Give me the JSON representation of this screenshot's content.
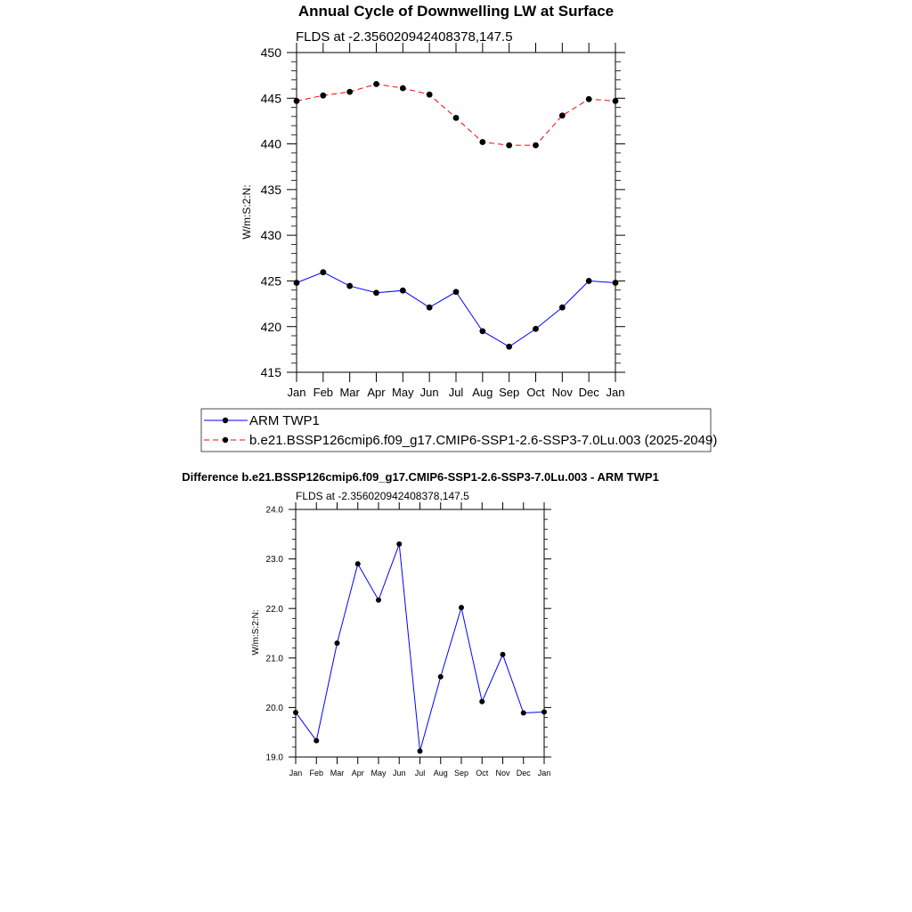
{
  "colors": {
    "obs": "#0000ff",
    "model": "#ff0000",
    "diff": "#0000ff",
    "marker": "#000000"
  },
  "chart_data": [
    {
      "type": "line",
      "title": "Annual Cycle of Downwelling LW at Surface",
      "subtitle": "FLDS at -2.356020942408378,147.5",
      "xlabel": "",
      "ylabel": "W/m:S:2:N:",
      "categories": [
        "Jan",
        "Feb",
        "Mar",
        "Apr",
        "May",
        "Jun",
        "Jul",
        "Aug",
        "Sep",
        "Oct",
        "Nov",
        "Dec",
        "Jan"
      ],
      "ylim": [
        415,
        450
      ],
      "yticks": [
        "415",
        "420",
        "425",
        "430",
        "435",
        "440",
        "445",
        "450"
      ],
      "series": [
        {
          "name": "ARM TWP1",
          "line": "solid",
          "color": "#0000ff",
          "values": [
            424.8,
            425.95,
            424.45,
            423.7,
            423.95,
            422.1,
            423.8,
            419.5,
            417.8,
            419.75,
            422.1,
            425.0,
            424.8
          ]
        },
        {
          "name": "b.e21.BSSP126cmip6.f09_g17.CMIP6-SSP1-2.6-SSP3-7.0Lu.003 (2025-2049)",
          "line": "dashed",
          "color": "#ff0000",
          "values": [
            444.7,
            445.3,
            445.7,
            446.55,
            446.1,
            445.4,
            442.85,
            440.2,
            439.85,
            439.85,
            443.1,
            444.9,
            444.7
          ]
        }
      ],
      "legend": "bottom"
    },
    {
      "type": "line",
      "title": "Difference b.e21.BSSP126cmip6.f09_g17.CMIP6-SSP1-2.6-SSP3-7.0Lu.003 - ARM TWP1",
      "subtitle": "FLDS at -2.356020942408378,147.5",
      "xlabel": "",
      "ylabel": "W/m:S:2:N:",
      "categories": [
        "Jan",
        "Feb",
        "Mar",
        "Apr",
        "May",
        "Jun",
        "Jul",
        "Aug",
        "Sep",
        "Oct",
        "Nov",
        "Dec",
        "Jan"
      ],
      "ylim": [
        19.0,
        24.0
      ],
      "yticks": [
        "19.0",
        "20.0",
        "21.0",
        "22.0",
        "23.0",
        "24.0"
      ],
      "series": [
        {
          "name": "",
          "line": "solid",
          "color": "#0000ff",
          "values": [
            19.9,
            19.33,
            21.3,
            22.9,
            22.17,
            23.3,
            19.12,
            20.62,
            22.02,
            20.12,
            21.07,
            19.89,
            19.91
          ]
        }
      ]
    }
  ]
}
